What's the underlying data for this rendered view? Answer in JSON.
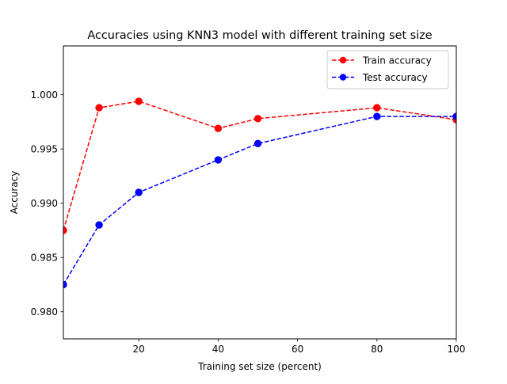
{
  "chart_data": {
    "type": "line",
    "title": "Accuracies using KNN3 model with different training set size",
    "xlabel": "Training set size (percent)",
    "ylabel": "Accuracy",
    "xlim": [
      1,
      100
    ],
    "ylim": [
      0.9775,
      1.0045
    ],
    "xticks": [
      20,
      40,
      60,
      80,
      100
    ],
    "xtick_labels": [
      "20",
      "40",
      "60",
      "80",
      "100"
    ],
    "yticks": [
      0.98,
      0.985,
      0.99,
      0.995,
      1.0
    ],
    "ytick_labels": [
      "0.980",
      "0.985",
      "0.990",
      "0.995",
      "1.000"
    ],
    "grid": false,
    "legend_position": "top-right",
    "x": [
      1,
      10,
      20,
      40,
      50,
      80,
      100
    ],
    "series": [
      {
        "name": "Train accuracy",
        "color": "#ff0000",
        "linestyle": "dashed",
        "marker": "circle",
        "values": [
          0.9875,
          0.9988,
          0.9994,
          0.9969,
          0.9978,
          0.9988,
          0.9977
        ]
      },
      {
        "name": "Test accuracy",
        "color": "#0000ff",
        "linestyle": "dashed",
        "marker": "circle",
        "values": [
          0.9825,
          0.988,
          0.991,
          0.994,
          0.9955,
          0.998,
          0.998
        ]
      }
    ]
  }
}
